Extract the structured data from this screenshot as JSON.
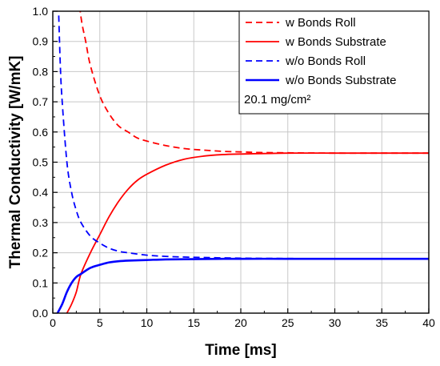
{
  "chart_data": {
    "type": "line",
    "title": "",
    "xlabel": "Time [ms]",
    "ylabel": "Thermal Conductivity [W/mK]",
    "xlim": [
      0,
      40
    ],
    "ylim": [
      0.0,
      1.0
    ],
    "xticks": [
      "0",
      "5",
      "10",
      "15",
      "20",
      "25",
      "30",
      "35",
      "40"
    ],
    "yticks": [
      "0.0",
      "0.1",
      "0.2",
      "0.3",
      "0.4",
      "0.5",
      "0.6",
      "0.7",
      "0.8",
      "0.9",
      "1.0"
    ],
    "grid": true,
    "legend_position": "top-right",
    "annotation": "20.1 mg/cm²",
    "series": [
      {
        "name": "w Bonds Roll",
        "color": "#ff0000",
        "style": "dashed",
        "x": [
          2.5,
          3,
          3.5,
          4,
          5,
          6,
          7,
          8,
          9,
          10,
          12,
          14,
          16,
          18,
          20,
          22,
          25,
          30,
          35,
          40
        ],
        "y": [
          1.12,
          0.98,
          0.9,
          0.82,
          0.72,
          0.66,
          0.62,
          0.6,
          0.58,
          0.57,
          0.555,
          0.545,
          0.54,
          0.536,
          0.534,
          0.532,
          0.531,
          0.53,
          0.53,
          0.53
        ]
      },
      {
        "name": "w Bonds Substrate",
        "color": "#ff0000",
        "style": "solid",
        "x": [
          1.5,
          2,
          2.5,
          3,
          4,
          5,
          6,
          7,
          8,
          9,
          10,
          12,
          14,
          16,
          18,
          20,
          25,
          30,
          35,
          40
        ],
        "y": [
          0.0,
          0.03,
          0.07,
          0.13,
          0.2,
          0.26,
          0.32,
          0.37,
          0.41,
          0.44,
          0.46,
          0.49,
          0.51,
          0.52,
          0.525,
          0.527,
          0.53,
          0.53,
          0.53,
          0.53
        ]
      },
      {
        "name": "w/o Bonds Roll",
        "color": "#0000ff",
        "style": "dashed",
        "x": [
          0.6,
          0.8,
          1,
          1.5,
          2,
          2.5,
          3,
          4,
          5,
          6,
          7,
          8,
          10,
          12,
          15,
          20,
          25,
          30,
          35,
          40
        ],
        "y": [
          1.02,
          0.82,
          0.7,
          0.5,
          0.4,
          0.34,
          0.3,
          0.255,
          0.232,
          0.215,
          0.205,
          0.2,
          0.192,
          0.188,
          0.185,
          0.182,
          0.181,
          0.18,
          0.18,
          0.18
        ]
      },
      {
        "name": "w/o Bonds Substrate",
        "color": "#0000ff",
        "style": "solid",
        "x": [
          0.5,
          1,
          1.5,
          2,
          2.5,
          3,
          4,
          5,
          6,
          7,
          8,
          10,
          12,
          15,
          20,
          25,
          30,
          35,
          40
        ],
        "y": [
          0.0,
          0.03,
          0.07,
          0.1,
          0.12,
          0.13,
          0.15,
          0.16,
          0.168,
          0.172,
          0.174,
          0.176,
          0.178,
          0.179,
          0.18,
          0.18,
          0.18,
          0.18,
          0.18
        ]
      }
    ]
  }
}
